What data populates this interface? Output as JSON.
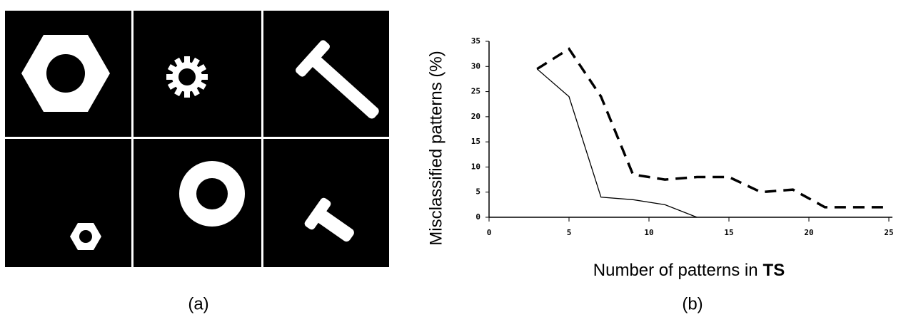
{
  "panel_labels": [
    "(a)",
    "(b)"
  ],
  "chart_data": {
    "type": "line",
    "ylabel": "Misclassified patterns (%)",
    "xlabel": {
      "text": "Number of patterns in",
      "bold": "TS"
    },
    "x": [
      3,
      5,
      7,
      9,
      11,
      13,
      15,
      17,
      19,
      21,
      23,
      25
    ],
    "series": [
      {
        "style": "solid",
        "color": "#000000",
        "values": [
          29.5,
          24,
          4,
          3.5,
          2.5,
          0,
          null,
          null,
          null,
          null,
          null,
          null
        ]
      },
      {
        "style": "dashed",
        "color": "#000000",
        "values": [
          29.5,
          33.5,
          24,
          8.5,
          7.5,
          8,
          8,
          5,
          5.5,
          2,
          2,
          2
        ]
      }
    ],
    "xlim": [
      0,
      25
    ],
    "xticks": [
      0,
      5,
      10,
      15,
      20,
      25
    ],
    "ylim": [
      0,
      35
    ],
    "yticks": [
      0,
      5,
      10,
      15,
      20,
      25,
      30,
      35
    ]
  }
}
